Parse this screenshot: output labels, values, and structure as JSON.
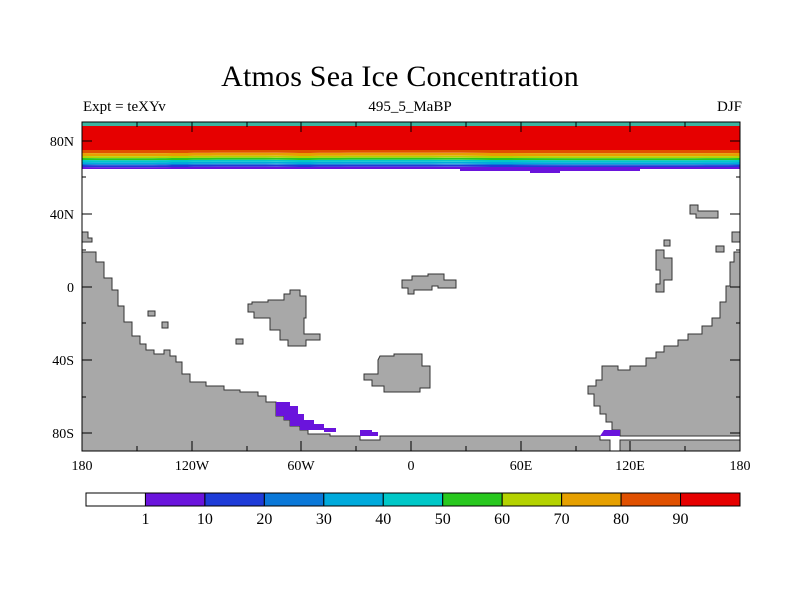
{
  "title": "Atmos Sea Ice Concentration",
  "subtitle_left": "Expt = teXYv",
  "subtitle_center": "495_5_MaBP",
  "subtitle_right": "DJF",
  "lat_ticks": [
    "80N",
    "40N",
    "0",
    "40S",
    "80S"
  ],
  "lon_ticks": [
    "180",
    "120W",
    "60W",
    "0",
    "60E",
    "120E",
    "180"
  ],
  "colorbar": {
    "labels": [
      "1",
      "10",
      "20",
      "30",
      "40",
      "50",
      "60",
      "70",
      "80",
      "90"
    ],
    "colors": [
      "#ffffff",
      "#6a14dc",
      "#1e3cd8",
      "#0a78d8",
      "#00aadc",
      "#00c8c8",
      "#28c81e",
      "#b4d200",
      "#e6a000",
      "#e05000",
      "#e60000"
    ]
  },
  "colors": {
    "land": "#a8a8a8",
    "ice_high": "#e60000",
    "ice_edge": "#6a14dc"
  }
}
